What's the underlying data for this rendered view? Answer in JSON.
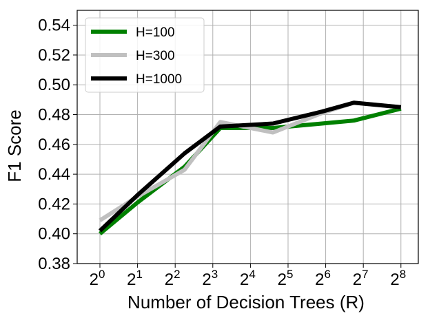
{
  "chart_data": {
    "type": "line",
    "title": "",
    "xlabel": "Number of Decision Trees (R)",
    "ylabel": "F1 Score",
    "x_tick_labels": [
      {
        "base": "2",
        "exp": "0",
        "value": 0
      },
      {
        "base": "2",
        "exp": "1",
        "value": 1
      },
      {
        "base": "2",
        "exp": "2",
        "value": 2
      },
      {
        "base": "2",
        "exp": "3",
        "value": 3
      },
      {
        "base": "2",
        "exp": "4",
        "value": 4
      },
      {
        "base": "2",
        "exp": "5",
        "value": 5
      },
      {
        "base": "2",
        "exp": "6",
        "value": 6
      },
      {
        "base": "2",
        "exp": "7",
        "value": 7
      },
      {
        "base": "2",
        "exp": "8",
        "value": 8
      }
    ],
    "y_ticks": [
      "0.38",
      "0.40",
      "0.42",
      "0.44",
      "0.46",
      "0.48",
      "0.50",
      "0.52",
      "0.54"
    ],
    "xlim": [
      -0.6,
      8.0
    ],
    "ylim": [
      0.38,
      0.55
    ],
    "x_scale": "log2",
    "grid": true,
    "legend_position": "top-left",
    "x": [
      0,
      1.25,
      2.5,
      3.75,
      5,
      6.25,
      7.5,
      8.75
    ],
    "x_note_values": "positions in log2(R) units",
    "series": [
      {
        "name": "H=100",
        "color": "#008000",
        "x": [
          0,
          1,
          2.25,
          3.2,
          4.6,
          5.9,
          6.75,
          8
        ],
        "values": [
          0.4,
          0.421,
          0.445,
          0.471,
          0.471,
          0.474,
          0.476,
          0.484
        ]
      },
      {
        "name": "H=300",
        "color": "#c0c0c0",
        "x": [
          0,
          1,
          2.25,
          3.2,
          4.6,
          5.9,
          6.75,
          8
        ],
        "values": [
          0.409,
          0.425,
          0.443,
          0.475,
          0.468,
          0.481,
          0.488,
          0.485
        ]
      },
      {
        "name": "H=1000",
        "color": "#000000",
        "x": [
          0,
          1,
          2.25,
          3.2,
          4.6,
          5.9,
          6.75,
          8
        ],
        "values": [
          0.402,
          0.426,
          0.454,
          0.472,
          0.474,
          0.482,
          0.488,
          0.485
        ]
      }
    ]
  }
}
